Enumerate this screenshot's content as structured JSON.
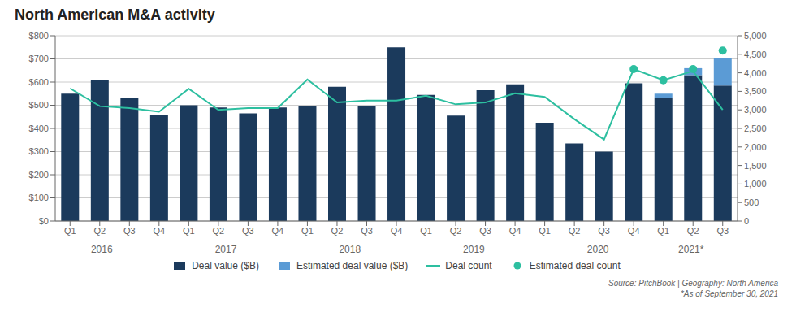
{
  "chart_data": {
    "type": "bar",
    "title": "North American M&A activity",
    "source": "Source: PitchBook | Geography: North America\n*As of September 30, 2021",
    "categories": [
      "Q1",
      "Q2",
      "Q3",
      "Q4",
      "Q1",
      "Q2",
      "Q3",
      "Q4",
      "Q1",
      "Q2",
      "Q3",
      "Q4",
      "Q1",
      "Q2",
      "Q3",
      "Q4",
      "Q1",
      "Q2",
      "Q3",
      "Q4",
      "Q1",
      "Q2",
      "Q3"
    ],
    "series": [
      {
        "name": "Deal value ($B)",
        "type": "bar",
        "color": "#1b3a5c",
        "values": [
          550,
          610,
          530,
          460,
          500,
          490,
          465,
          490,
          495,
          580,
          495,
          750,
          545,
          455,
          565,
          590,
          425,
          335,
          300,
          595,
          530,
          630,
          585
        ]
      },
      {
        "name": "Estimated deal value ($B)",
        "type": "bar",
        "color": "#5b9bd5",
        "values": [
          0,
          0,
          0,
          0,
          0,
          0,
          0,
          0,
          0,
          0,
          0,
          0,
          0,
          0,
          0,
          0,
          0,
          0,
          0,
          0,
          20,
          30,
          120
        ]
      },
      {
        "name": "Deal count",
        "type": "line",
        "axis": "y2",
        "color": "#2dbfa0",
        "values": [
          3580,
          3100,
          3050,
          2950,
          3570,
          3000,
          3050,
          3050,
          3820,
          3200,
          3250,
          3250,
          3380,
          3150,
          3200,
          3450,
          3350,
          2750,
          2200,
          4100,
          3800,
          4050,
          3000
        ]
      },
      {
        "name": "Estimated deal count",
        "type": "scatter",
        "axis": "y2",
        "marker": "circle",
        "color": "#2dbfa0",
        "values": [
          null,
          null,
          null,
          null,
          null,
          null,
          null,
          null,
          null,
          null,
          null,
          null,
          null,
          null,
          null,
          null,
          null,
          null,
          null,
          4100,
          3800,
          4100,
          4600
        ]
      }
    ],
    "stacked": true,
    "grid": true,
    "legend": "bottom",
    "ylim": [
      0,
      800
    ],
    "yticks": [
      {
        "value": 0,
        "label": "$0"
      },
      {
        "value": 100,
        "label": "$100"
      },
      {
        "value": 200,
        "label": "$200"
      },
      {
        "value": 300,
        "label": "$300"
      },
      {
        "value": 400,
        "label": "$400"
      },
      {
        "value": 500,
        "label": "$500"
      },
      {
        "value": 600,
        "label": "$600"
      },
      {
        "value": 700,
        "label": "$700"
      },
      {
        "value": 800,
        "label": "$800"
      }
    ],
    "y2lim": [
      0,
      5000
    ],
    "y2ticks": [
      0,
      500,
      {
        "value": 1000,
        "label": "1,000"
      },
      {
        "value": 1500,
        "label": "1,500"
      },
      {
        "value": 2000,
        "label": "2,000"
      },
      {
        "value": 2500,
        "label": "2,500"
      },
      {
        "value": 3000,
        "label": "3,000"
      },
      {
        "value": 3500,
        "label": "3,500"
      },
      {
        "value": 4000,
        "label": "4,000"
      },
      {
        "value": 4500,
        "label": "4,500"
      },
      {
        "value": 5000,
        "label": "5,000"
      }
    ],
    "annotations": [
      {
        "text": "2016",
        "x": 1.5
      },
      {
        "text": "2017",
        "x": 5.5
      },
      {
        "text": "2018",
        "x": 9.5
      },
      {
        "text": "2019",
        "x": 13.5
      },
      {
        "text": "2020",
        "x": 17.5
      },
      {
        "text": "2021*",
        "x": 20.5
      }
    ]
  }
}
